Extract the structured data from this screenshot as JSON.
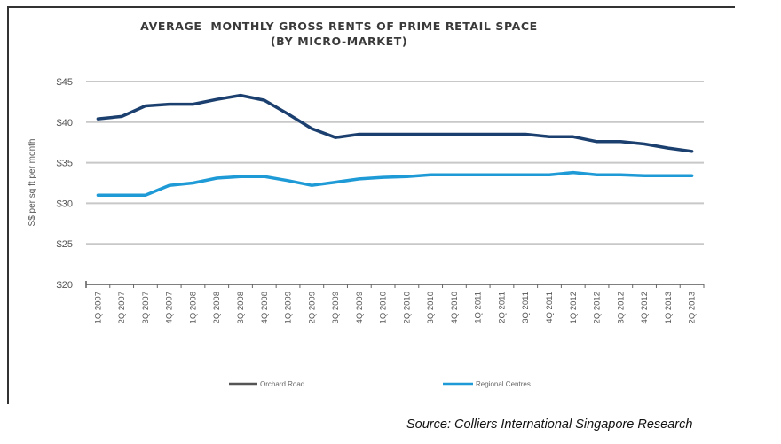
{
  "chart_data": {
    "type": "line",
    "title": "AVERAGE  MONTHLY GROSS RENTS OF PRIME RETAIL SPACE",
    "subtitle": "(BY MICRO-MARKET)",
    "xlabel": "",
    "ylabel": "S$ per sq ft per month",
    "ylim": [
      20,
      45
    ],
    "yticks": [
      20,
      25,
      30,
      35,
      40,
      45
    ],
    "ytick_labels": [
      "$20",
      "$25",
      "$30",
      "$35",
      "$40",
      "$45"
    ],
    "grid": true,
    "legend_position": "bottom",
    "categories": [
      "1Q 2007",
      "2Q 2007",
      "3Q 2007",
      "4Q 2007",
      "1Q 2008",
      "2Q 2008",
      "3Q 2008",
      "4Q 2008",
      "1Q 2009",
      "2Q 2009",
      "3Q 2009",
      "4Q 2009",
      "1Q 2010",
      "2Q 2010",
      "3Q 2010",
      "4Q 2010",
      "1Q 2011",
      "2Q 2011",
      "3Q 2011",
      "4Q 2011",
      "1Q 2012",
      "2Q 2012",
      "3Q 2012",
      "4Q 2012",
      "1Q 2013",
      "2Q 2013"
    ],
    "series": [
      {
        "name": "Orchard Road",
        "color": "#1b3f6e",
        "legend_color": "#555555",
        "values": [
          40.4,
          40.7,
          42.0,
          42.2,
          42.2,
          42.8,
          43.3,
          42.7,
          41.0,
          39.2,
          38.1,
          38.5,
          38.5,
          38.5,
          38.5,
          38.5,
          38.5,
          38.5,
          38.5,
          38.2,
          38.2,
          37.6,
          37.6,
          37.3,
          36.8,
          36.4
        ]
      },
      {
        "name": "Regional Centres",
        "color": "#1e9ad6",
        "legend_color": "#1e9ad6",
        "values": [
          31.0,
          31.0,
          31.0,
          32.2,
          32.5,
          33.1,
          33.3,
          33.3,
          32.8,
          32.2,
          32.6,
          33.0,
          33.2,
          33.3,
          33.5,
          33.5,
          33.5,
          33.5,
          33.5,
          33.5,
          33.8,
          33.5,
          33.5,
          33.4,
          33.4,
          33.4
        ]
      }
    ]
  },
  "source": "Source: Colliers International Singapore Research"
}
